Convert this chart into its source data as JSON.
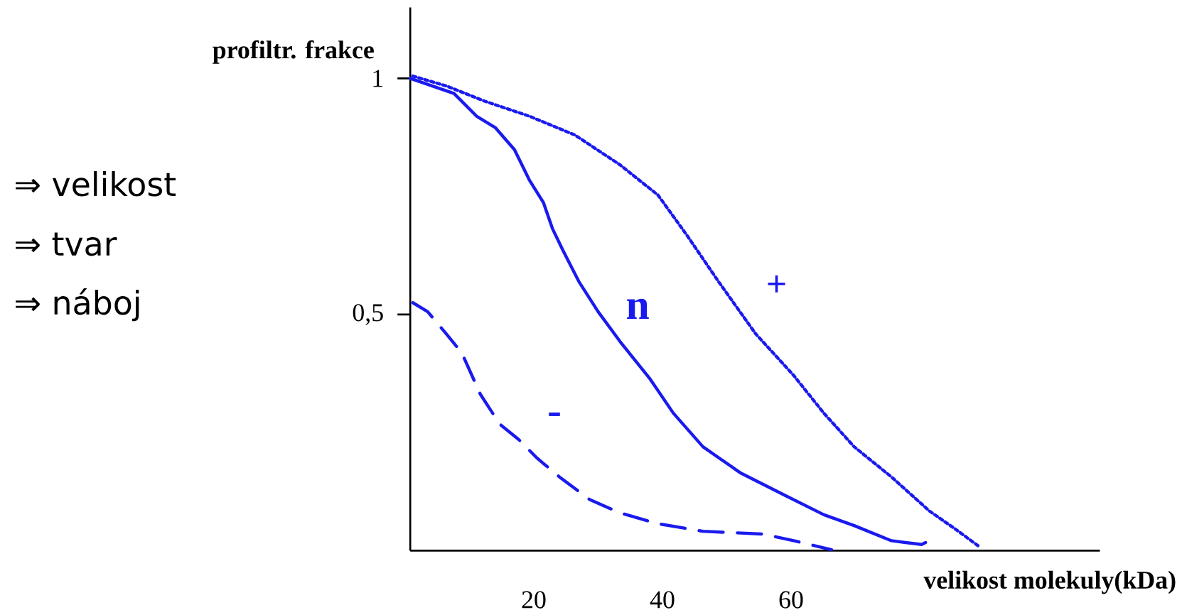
{
  "chart_data": {
    "type": "line",
    "xlabel": "velikost molekuly(kDa)",
    "ylabel": "profiltr. frakce",
    "xlim": [
      0.8,
      108
    ],
    "ylim": [
      0,
      1.15
    ],
    "xticks": [
      20,
      40,
      60
    ],
    "yticks": [
      {
        "value": 0.5,
        "label": "0,5"
      },
      1
    ],
    "grid": false,
    "legend": false,
    "series": [
      {
        "name": "-",
        "color": "#1a1aee",
        "line_style": "dashed",
        "x": [
          1.2,
          3.5,
          6.4,
          8.8,
          11.7,
          14.7,
          17.6,
          20.5,
          24,
          28.7,
          33.4,
          39.3,
          46.3,
          55.7,
          60.4,
          66.3
        ],
        "values": [
          0.525,
          0.506,
          0.459,
          0.419,
          0.331,
          0.268,
          0.236,
          0.196,
          0.156,
          0.108,
          0.08,
          0.057,
          0.041,
          0.035,
          0.021,
          0.002
        ]
      },
      {
        "name": "n",
        "color": "#1a1aee",
        "line_style": "solid",
        "x": [
          0.8,
          7.6,
          11.1,
          14,
          17,
          19.3,
          21.5,
          22.9,
          24.6,
          27,
          30,
          33.4,
          38.1,
          41.7,
          46.3,
          52.2,
          59.2,
          65.1,
          69.8,
          75.6,
          80.3,
          80.9
        ],
        "values": [
          1.0,
          0.968,
          0.92,
          0.896,
          0.849,
          0.785,
          0.737,
          0.682,
          0.634,
          0.57,
          0.506,
          0.443,
          0.363,
          0.291,
          0.22,
          0.164,
          0.116,
          0.076,
          0.053,
          0.021,
          0.013,
          0.017
        ]
      },
      {
        "name": "+",
        "color": "#1a1aee",
        "line_style": "dotted",
        "x": [
          1.2,
          6.4,
          12.3,
          19.3,
          26.4,
          33.4,
          39.3,
          43.9,
          48.7,
          54.5,
          60.4,
          65.1,
          69.8,
          75.6,
          81.5,
          85.6,
          89.1
        ],
        "values": [
          1.005,
          0.984,
          0.952,
          0.92,
          0.88,
          0.817,
          0.753,
          0.666,
          0.57,
          0.459,
          0.371,
          0.291,
          0.22,
          0.156,
          0.084,
          0.045,
          0.01
        ]
      }
    ],
    "annotations": [
      "⇒ velikost",
      "⇒ tvar",
      "⇒ náboj"
    ]
  }
}
